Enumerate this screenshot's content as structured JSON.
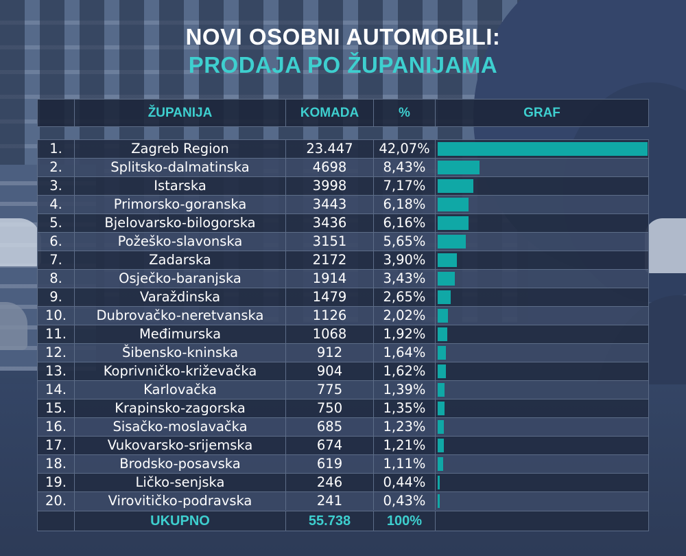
{
  "title": {
    "line1": "NOVI OSOBNI AUTOMOBILI:",
    "line2": "PRODAJA PO ŽUPANIJAMA"
  },
  "colors": {
    "accent": "#3ecfcf",
    "bar": "#10a8a6",
    "text": "#ffffff"
  },
  "chart_data": {
    "type": "table",
    "title": "NOVI OSOBNI AUTOMOBILI: PRODAJA PO ŽUPANIJAMA",
    "columns": [
      "",
      "ŽUPANIJA",
      "KOMADA",
      "%",
      "GRAF"
    ],
    "rows": [
      {
        "rank": "1.",
        "name": "Zagreb Region",
        "qty": "23.447",
        "pct": "42,07%",
        "value": 42.07
      },
      {
        "rank": "2.",
        "name": "Splitsko-dalmatinska",
        "qty": "4698",
        "pct": "8,43%",
        "value": 8.43
      },
      {
        "rank": "3.",
        "name": "Istarska",
        "qty": "3998",
        "pct": "7,17%",
        "value": 7.17
      },
      {
        "rank": "4.",
        "name": "Primorsko-goranska",
        "qty": "3443",
        "pct": "6,18%",
        "value": 6.18
      },
      {
        "rank": "5.",
        "name": "Bjelovarsko-bilogorska",
        "qty": "3436",
        "pct": "6,16%",
        "value": 6.16
      },
      {
        "rank": "6.",
        "name": "Požeško-slavonska",
        "qty": "3151",
        "pct": "5,65%",
        "value": 5.65
      },
      {
        "rank": "7.",
        "name": "Zadarska",
        "qty": "2172",
        "pct": "3,90%",
        "value": 3.9
      },
      {
        "rank": "8.",
        "name": "Osječko-baranjska",
        "qty": "1914",
        "pct": "3,43%",
        "value": 3.43
      },
      {
        "rank": "9.",
        "name": "Varaždinska",
        "qty": "1479",
        "pct": "2,65%",
        "value": 2.65
      },
      {
        "rank": "10.",
        "name": "Dubrovačko-neretvanska",
        "qty": "1126",
        "pct": "2,02%",
        "value": 2.02
      },
      {
        "rank": "11.",
        "name": "Međimurska",
        "qty": "1068",
        "pct": "1,92%",
        "value": 1.92
      },
      {
        "rank": "12.",
        "name": "Šibensko-kninska",
        "qty": "912",
        "pct": "1,64%",
        "value": 1.64
      },
      {
        "rank": "13.",
        "name": "Koprivničko-križevačka",
        "qty": "904",
        "pct": "1,62%",
        "value": 1.62
      },
      {
        "rank": "14.",
        "name": "Karlovačka",
        "qty": "775",
        "pct": "1,39%",
        "value": 1.39
      },
      {
        "rank": "15.",
        "name": "Krapinsko-zagorska",
        "qty": "750",
        "pct": "1,35%",
        "value": 1.35
      },
      {
        "rank": "16.",
        "name": "Sisačko-moslavačka",
        "qty": "685",
        "pct": "1,23%",
        "value": 1.23
      },
      {
        "rank": "17.",
        "name": "Vukovarsko-srijemska",
        "qty": "674",
        "pct": "1,21%",
        "value": 1.21
      },
      {
        "rank": "18.",
        "name": "Brodsko-posavska",
        "qty": "619",
        "pct": "1,11%",
        "value": 1.11
      },
      {
        "rank": "19.",
        "name": "Ličko-senjska",
        "qty": "246",
        "pct": "0,44%",
        "value": 0.44
      },
      {
        "rank": "20.",
        "name": "Virovitičko-podravska",
        "qty": "241",
        "pct": "0,43%",
        "value": 0.43
      }
    ],
    "total": {
      "label": "UKUPNO",
      "qty": "55.738",
      "pct": "100%"
    },
    "bar_max": 42.07
  }
}
